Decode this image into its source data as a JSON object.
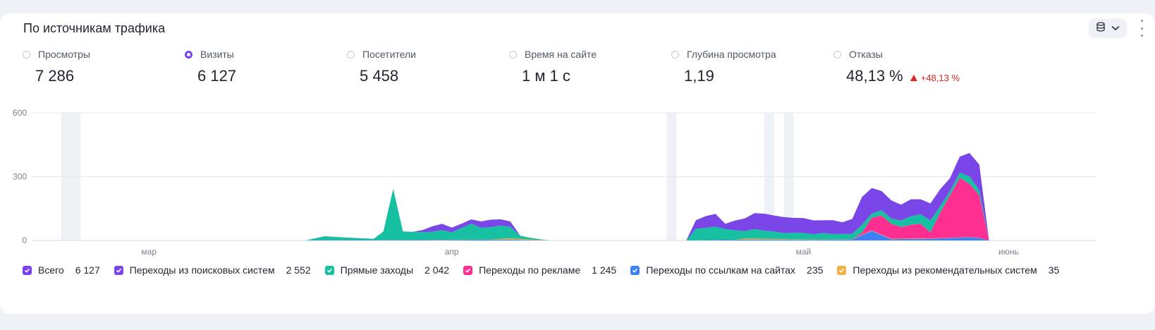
{
  "title": "По источникам трафика",
  "colors": {
    "accent": "#7a3ff2",
    "search": "#7b46e8",
    "direct": "#17c0a0",
    "ads": "#ff2f92",
    "links": "#3b82f6",
    "recommend": "#f5b041",
    "delta_up": "#e0231c"
  },
  "metrics": [
    {
      "label": "Просмотры",
      "value": "7 286",
      "selected": false
    },
    {
      "label": "Визиты",
      "value": "6 127",
      "selected": true
    },
    {
      "label": "Посетители",
      "value": "5 458",
      "selected": false
    },
    {
      "label": "Время на сайте",
      "value": "1 м 1 с",
      "selected": false
    },
    {
      "label": "Глубина просмотра",
      "value": "1,19",
      "selected": false
    },
    {
      "label": "Отказы",
      "value": "48,13 %",
      "selected": false,
      "delta": "+48,13 %"
    }
  ],
  "legend": [
    {
      "label": "Всего",
      "value": "6 127",
      "color": "#7a3ff2"
    },
    {
      "label": "Переходы из поисковых систем",
      "value": "2 552",
      "color": "#7b46e8"
    },
    {
      "label": "Прямые заходы",
      "value": "2 042",
      "color": "#17c0a0"
    },
    {
      "label": "Переходы по рекламе",
      "value": "1 245",
      "color": "#ff2f92"
    },
    {
      "label": "Переходы по ссылкам на сайтах",
      "value": "235",
      "color": "#3b82f6"
    },
    {
      "label": "Переходы из рекомендательных систем",
      "value": "35",
      "color": "#f5b041"
    }
  ],
  "chart_data": {
    "type": "area",
    "stacked": true,
    "y_ticks": [
      "0",
      "300",
      "600"
    ],
    "ylim": [
      0,
      600
    ],
    "x_tick_labels": [
      "мар",
      "апр",
      "май",
      "июнь"
    ],
    "grid": true,
    "note_series_order_bottom_to_top": [
      "links",
      "recommend",
      "ads",
      "direct",
      "search"
    ],
    "x_index_range": [
      0,
      109
    ],
    "x_tick_index": [
      12,
      43,
      79,
      100
    ],
    "shaded_bands_index": [
      [
        3,
        5
      ],
      [
        65,
        66
      ],
      [
        75,
        76
      ],
      [
        77,
        78
      ]
    ],
    "series": [
      {
        "name": "Переходы по ссылкам на сайтах",
        "color": "#3b82f6",
        "points": [
          [
            28,
            0
          ],
          [
            29,
            2
          ],
          [
            33,
            2
          ],
          [
            37,
            2
          ],
          [
            44,
            3
          ],
          [
            48,
            4
          ],
          [
            50,
            3
          ],
          [
            52,
            1
          ],
          [
            53,
            0
          ],
          [
            68,
            0
          ],
          [
            70,
            3
          ],
          [
            74,
            4
          ],
          [
            78,
            4
          ],
          [
            80,
            3
          ],
          [
            84,
            5
          ],
          [
            86,
            45
          ],
          [
            88,
            6
          ],
          [
            92,
            8
          ],
          [
            96,
            15
          ],
          [
            97,
            12
          ],
          [
            98,
            0
          ]
        ]
      },
      {
        "name": "Переходы из рекомендательных систем",
        "color": "#f5b041",
        "points": [
          [
            28,
            0
          ],
          [
            33,
            0
          ],
          [
            47,
            1
          ],
          [
            49,
            6
          ],
          [
            51,
            3
          ],
          [
            53,
            0
          ],
          [
            72,
            0
          ],
          [
            73,
            5
          ],
          [
            75,
            4
          ],
          [
            78,
            2
          ],
          [
            82,
            1
          ],
          [
            88,
            2
          ],
          [
            92,
            1
          ],
          [
            96,
            1
          ],
          [
            98,
            0
          ]
        ]
      },
      {
        "name": "Переходы по рекламе",
        "color": "#ff2f92",
        "points": [
          [
            84,
            0
          ],
          [
            85,
            10
          ],
          [
            86,
            60
          ],
          [
            87,
            90
          ],
          [
            88,
            70
          ],
          [
            89,
            55
          ],
          [
            90,
            65
          ],
          [
            91,
            70
          ],
          [
            92,
            30
          ],
          [
            93,
            120
          ],
          [
            94,
            200
          ],
          [
            95,
            280
          ],
          [
            96,
            250
          ],
          [
            97,
            200
          ],
          [
            98,
            0
          ]
        ]
      },
      {
        "name": "Прямые заходы",
        "color": "#17c0a0",
        "points": [
          [
            28,
            0
          ],
          [
            29,
            8
          ],
          [
            30,
            18
          ],
          [
            31,
            15
          ],
          [
            32,
            12
          ],
          [
            33,
            10
          ],
          [
            34,
            8
          ],
          [
            35,
            5
          ],
          [
            36,
            40
          ],
          [
            37,
            240
          ],
          [
            38,
            40
          ],
          [
            39,
            38
          ],
          [
            40,
            36
          ],
          [
            41,
            38
          ],
          [
            42,
            45
          ],
          [
            43,
            35
          ],
          [
            44,
            55
          ],
          [
            45,
            75
          ],
          [
            46,
            55
          ],
          [
            47,
            58
          ],
          [
            48,
            62
          ],
          [
            49,
            55
          ],
          [
            50,
            15
          ],
          [
            51,
            8
          ],
          [
            52,
            3
          ],
          [
            53,
            0
          ],
          [
            67,
            0
          ],
          [
            68,
            55
          ],
          [
            69,
            58
          ],
          [
            70,
            62
          ],
          [
            71,
            50
          ],
          [
            72,
            45
          ],
          [
            73,
            35
          ],
          [
            74,
            45
          ],
          [
            75,
            38
          ],
          [
            76,
            35
          ],
          [
            77,
            28
          ],
          [
            78,
            30
          ],
          [
            79,
            30
          ],
          [
            80,
            25
          ],
          [
            81,
            30
          ],
          [
            82,
            25
          ],
          [
            84,
            25
          ],
          [
            85,
            38
          ],
          [
            86,
            20
          ],
          [
            87,
            25
          ],
          [
            88,
            25
          ],
          [
            89,
            30
          ],
          [
            90,
            40
          ],
          [
            91,
            45
          ],
          [
            92,
            55
          ],
          [
            93,
            30
          ],
          [
            94,
            20
          ],
          [
            95,
            25
          ],
          [
            96,
            35
          ],
          [
            97,
            25
          ],
          [
            98,
            0
          ]
        ]
      },
      {
        "name": "Переходы из поисковых систем",
        "color": "#7b46e8",
        "points": [
          [
            39,
            0
          ],
          [
            40,
            10
          ],
          [
            41,
            25
          ],
          [
            42,
            30
          ],
          [
            43,
            22
          ],
          [
            44,
            20
          ],
          [
            45,
            20
          ],
          [
            46,
            30
          ],
          [
            47,
            35
          ],
          [
            48,
            30
          ],
          [
            49,
            25
          ],
          [
            50,
            0
          ],
          [
            67,
            0
          ],
          [
            68,
            40
          ],
          [
            69,
            55
          ],
          [
            70,
            60
          ],
          [
            71,
            25
          ],
          [
            72,
            45
          ],
          [
            73,
            60
          ],
          [
            74,
            75
          ],
          [
            75,
            80
          ],
          [
            76,
            75
          ],
          [
            77,
            75
          ],
          [
            78,
            70
          ],
          [
            79,
            70
          ],
          [
            80,
            65
          ],
          [
            81,
            60
          ],
          [
            82,
            65
          ],
          [
            83,
            55
          ],
          [
            84,
            70
          ],
          [
            85,
            130
          ],
          [
            86,
            120
          ],
          [
            87,
            90
          ],
          [
            88,
            85
          ],
          [
            89,
            75
          ],
          [
            90,
            80
          ],
          [
            91,
            70
          ],
          [
            92,
            80
          ],
          [
            93,
            80
          ],
          [
            94,
            60
          ],
          [
            95,
            75
          ],
          [
            96,
            110
          ],
          [
            97,
            120
          ],
          [
            98,
            0
          ]
        ]
      }
    ]
  }
}
